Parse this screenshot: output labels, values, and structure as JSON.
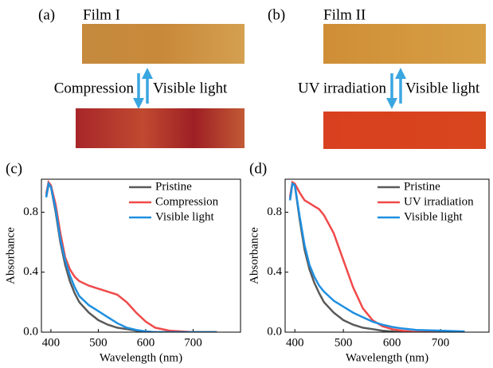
{
  "photos": [
    {
      "label": "(a)",
      "film": "Film I",
      "down": "Compression",
      "up": "Visible light"
    },
    {
      "label": "(b)",
      "film": "Film II",
      "down": "UV irradiation",
      "up": "Visible light"
    }
  ],
  "chart_data": [
    {
      "type": "line",
      "panel_label": "(c)",
      "x_label": "Wavelength (nm)",
      "y_label": "Absorbance",
      "xlim": [
        380,
        800
      ],
      "ylim": [
        0,
        1.02
      ],
      "xticks": [
        400,
        500,
        600,
        700
      ],
      "yticks": [
        {
          "value": 0,
          "label": "0.0"
        },
        0.4,
        0.8
      ],
      "legend": "upper right",
      "x": [
        390,
        395,
        400,
        410,
        420,
        430,
        440,
        450,
        460,
        480,
        500,
        520,
        540,
        560,
        580,
        600,
        620,
        650,
        700,
        750
      ],
      "series": [
        {
          "name": "Pristine",
          "color": "#5a5a5a",
          "values": [
            0.9,
            0.98,
            0.97,
            0.8,
            0.6,
            0.45,
            0.34,
            0.26,
            0.2,
            0.13,
            0.08,
            0.05,
            0.03,
            0.02,
            0.01,
            0.005,
            0,
            0,
            0,
            0
          ]
        },
        {
          "name": "Compression",
          "color": "#f04a4a",
          "values": [
            0.92,
            1.0,
            0.98,
            0.85,
            0.66,
            0.5,
            0.42,
            0.37,
            0.34,
            0.31,
            0.29,
            0.27,
            0.25,
            0.2,
            0.13,
            0.07,
            0.03,
            0.01,
            0,
            0
          ]
        },
        {
          "name": "Visible light",
          "color": "#1f8fe0",
          "values": [
            0.9,
            0.99,
            0.97,
            0.82,
            0.62,
            0.48,
            0.38,
            0.3,
            0.24,
            0.18,
            0.14,
            0.1,
            0.06,
            0.03,
            0.015,
            0.005,
            0,
            0,
            0,
            0
          ]
        }
      ]
    },
    {
      "type": "line",
      "panel_label": "(d)",
      "x_label": "Wavelength (nm)",
      "y_label": "Absorbance",
      "xlim": [
        380,
        800
      ],
      "ylim": [
        0,
        1.02
      ],
      "xticks": [
        400,
        500,
        600,
        700
      ],
      "yticks": [
        {
          "value": 0,
          "label": "0.0"
        },
        0.4,
        0.8
      ],
      "legend": "upper right",
      "x": [
        390,
        395,
        400,
        410,
        420,
        430,
        440,
        450,
        460,
        480,
        500,
        520,
        540,
        560,
        580,
        600,
        620,
        650,
        700,
        750
      ],
      "series": [
        {
          "name": "Pristine",
          "color": "#5a5a5a",
          "values": [
            0.88,
            0.99,
            0.98,
            0.75,
            0.55,
            0.42,
            0.33,
            0.26,
            0.2,
            0.13,
            0.08,
            0.05,
            0.03,
            0.02,
            0.01,
            0.005,
            0,
            0,
            0,
            0
          ]
        },
        {
          "name": "UV irradiation",
          "color": "#f04a4a",
          "values": [
            0.9,
            1.0,
            0.99,
            0.93,
            0.88,
            0.86,
            0.84,
            0.82,
            0.78,
            0.66,
            0.48,
            0.3,
            0.16,
            0.08,
            0.04,
            0.02,
            0.01,
            0,
            0,
            0
          ]
        },
        {
          "name": "Visible light",
          "color": "#1f8fe0",
          "values": [
            0.88,
            0.99,
            0.98,
            0.77,
            0.58,
            0.45,
            0.37,
            0.31,
            0.27,
            0.21,
            0.17,
            0.13,
            0.1,
            0.07,
            0.05,
            0.035,
            0.025,
            0.015,
            0.01,
            0.005
          ]
        }
      ]
    }
  ]
}
